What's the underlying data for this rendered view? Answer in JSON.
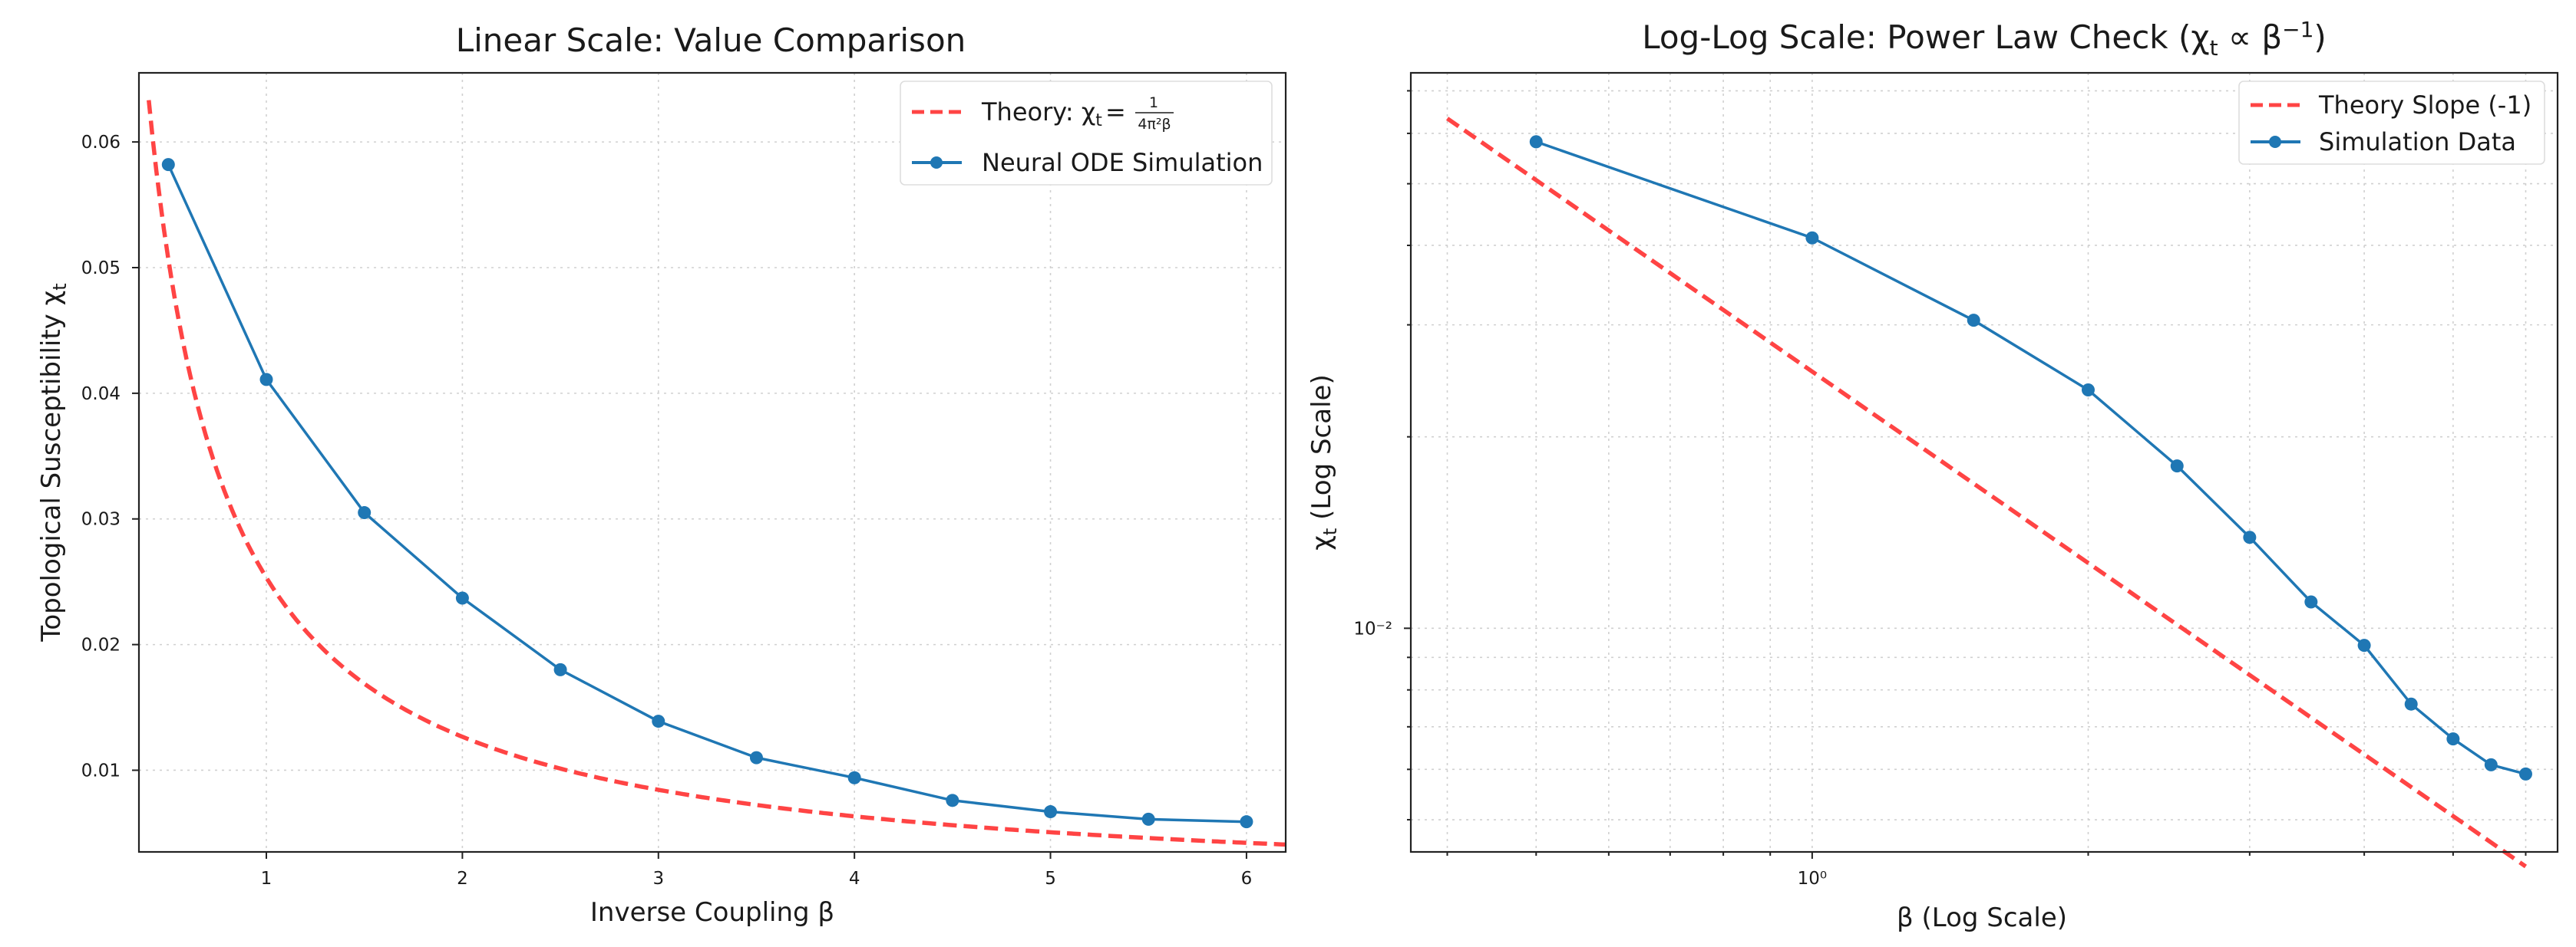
{
  "chart_data": [
    {
      "type": "line",
      "title": "Linear Scale: Value Comparison",
      "xlabel": "Inverse Coupling β",
      "ylabel": "Topological Susceptibility χ",
      "ylabel_subscript": "t",
      "xlim": [
        0.35,
        6.2
      ],
      "ylim": [
        0.0035,
        0.0655
      ],
      "xscale": "linear",
      "yscale": "linear",
      "grid": true,
      "legend": "top-right",
      "x_ticks": [
        1,
        2,
        3,
        4,
        5,
        6
      ],
      "x_tick_labels": [
        "1",
        "2",
        "3",
        "4",
        "5",
        "6"
      ],
      "y_ticks": [
        0.01,
        0.02,
        0.03,
        0.04,
        0.05,
        0.06
      ],
      "y_tick_labels": [
        "0.01",
        "0.02",
        "0.03",
        "0.04",
        "0.05",
        "0.06"
      ],
      "series": [
        {
          "name": "Theory: χ",
          "name_subscript": "t",
          "name_equals": "=",
          "name_fraction_numerator": "1",
          "name_fraction_denominator": "4π²β",
          "style": "dashed",
          "color": "#ff4444",
          "formula": "1/(4*pi^2*beta)",
          "x_range": [
            0.4,
            6.2
          ]
        },
        {
          "name": "Neural ODE Simulation",
          "style": "solid-markers",
          "color": "#1f77b4",
          "x": [
            0.5,
            1.0,
            1.5,
            2.0,
            2.5,
            3.0,
            3.5,
            4.0,
            4.5,
            5.0,
            5.5,
            6.0
          ],
          "y": [
            0.0582,
            0.0411,
            0.0305,
            0.0237,
            0.018,
            0.0139,
            0.011,
            0.0094,
            0.0076,
            0.0067,
            0.0061,
            0.0059
          ]
        }
      ]
    },
    {
      "type": "line",
      "title": "Log-Log Scale: Power Law Check (χ",
      "title_subscript": "t",
      "title_suffix": " ∝ β",
      "title_superscript": "−1",
      "title_close": ")",
      "xlabel": "β (Log Scale)",
      "ylabel": "χ",
      "ylabel_subscript": "t",
      "ylabel_suffix": " (Log Scale)",
      "xlim": [
        0.365,
        6.5
      ],
      "ylim": [
        0.00445,
        0.0747
      ],
      "xscale": "log",
      "yscale": "log",
      "grid": true,
      "legend": "top-right",
      "x_major_ticks": [
        1
      ],
      "x_major_tick_labels": [
        "10⁰"
      ],
      "x_minor_ticks": [
        0.4,
        0.5,
        0.6,
        0.7,
        0.8,
        0.9,
        2,
        3,
        4,
        5,
        6
      ],
      "y_major_ticks": [
        0.01
      ],
      "y_major_tick_labels": [
        "10⁻²"
      ],
      "y_minor_ticks": [
        0.005,
        0.006,
        0.007,
        0.008,
        0.009,
        0.02,
        0.03,
        0.04,
        0.05,
        0.06,
        0.07
      ],
      "series": [
        {
          "name": "Theory Slope (-1)",
          "style": "dashed",
          "color": "#ff4444",
          "formula": "1/(4*pi^2*beta)",
          "x_range": [
            0.4,
            6.0
          ]
        },
        {
          "name": "Simulation Data",
          "style": "solid-markers",
          "color": "#1f77b4",
          "x": [
            0.5,
            1.0,
            1.5,
            2.0,
            2.5,
            3.0,
            3.5,
            4.0,
            4.5,
            5.0,
            5.5,
            6.0
          ],
          "y": [
            0.0582,
            0.0411,
            0.0305,
            0.0237,
            0.018,
            0.0139,
            0.011,
            0.0094,
            0.0076,
            0.0067,
            0.0061,
            0.0059
          ]
        }
      ]
    }
  ]
}
